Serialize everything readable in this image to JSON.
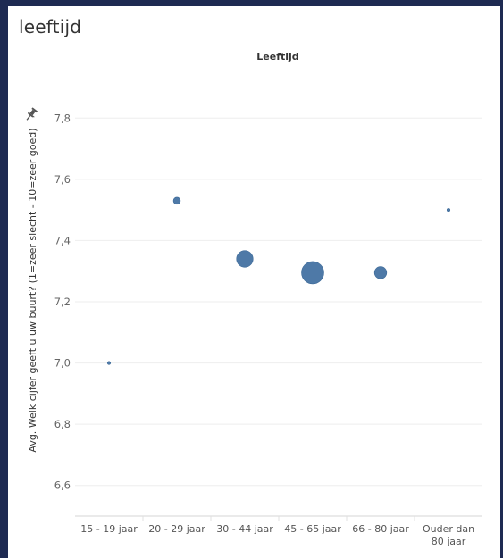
{
  "sheet": {
    "title": "leeftijd"
  },
  "icons": {
    "pin": "pin-icon"
  },
  "chart_data": {
    "type": "scatter",
    "title": "Leeftijd",
    "xlabel": "",
    "ylabel": "Avg. Welk cijfer geeft u uw buurt? (1=zeer slecht - 10=zeer goed)",
    "ylim": [
      6.5,
      7.97
    ],
    "yticks": [
      6.6,
      6.8,
      7.0,
      7.2,
      7.4,
      7.6,
      7.8
    ],
    "ytick_labels": [
      "6,6",
      "6,8",
      "7,0",
      "7,2",
      "7,4",
      "7,6",
      "7,8"
    ],
    "grid": true,
    "color": "#4e79a7",
    "categories": [
      "15 - 19 jaar",
      "20 - 29 jaar",
      "30 - 44 jaar",
      "45 - 65 jaar",
      "66 - 80 jaar",
      "Ouder dan 80 jaar"
    ],
    "category_label_lines": [
      [
        "15 - 19 jaar"
      ],
      [
        "20 - 29 jaar"
      ],
      [
        "30 - 44 jaar"
      ],
      [
        "45 - 65 jaar"
      ],
      [
        "66 - 80 jaar"
      ],
      [
        "Ouder dan",
        "80 jaar"
      ]
    ],
    "values": [
      7.0,
      7.53,
      7.34,
      7.295,
      7.295,
      7.5
    ],
    "relative_size": [
      0.02,
      0.1,
      0.55,
      1.0,
      0.3,
      0.02
    ]
  }
}
